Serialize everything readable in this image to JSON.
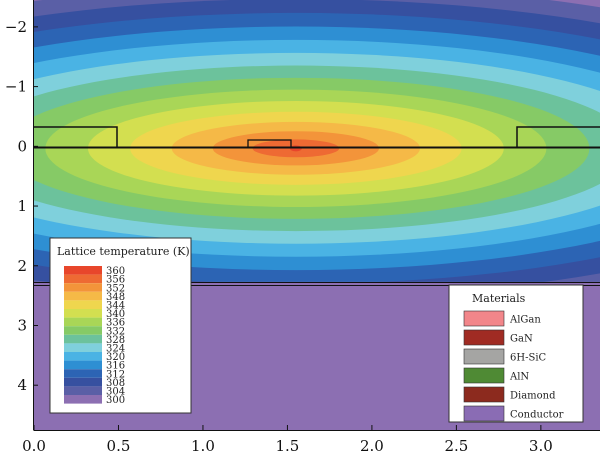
{
  "chart_data": {
    "type": "heatmap",
    "title": "",
    "xlabel": "",
    "ylabel": "",
    "x_ticks": [
      "0.0",
      "0.5",
      "1.0",
      "1.5",
      "2.0",
      "2.5",
      "3.0"
    ],
    "y_ticks": [
      "−2",
      "−1",
      "0",
      "1",
      "2",
      "3",
      "4"
    ],
    "xlim": [
      0.0,
      3.35
    ],
    "ylim": [
      -2.45,
      4.75
    ],
    "y_inverted": true,
    "hotspot": {
      "x": 1.55,
      "y": 0.0,
      "peak_temperature_K": 360
    },
    "colorbar": {
      "title": "Lattice temperature (K)",
      "levels": [
        "360",
        "356",
        "352",
        "348",
        "344",
        "340",
        "336",
        "332",
        "328",
        "324",
        "320",
        "316",
        "312",
        "308",
        "304",
        "300"
      ],
      "colors": [
        "#e8462b",
        "#ee6a33",
        "#f3943a",
        "#f5b947",
        "#efd64e",
        "#d3df50",
        "#a9d657",
        "#86ca66",
        "#6cc29c",
        "#7fd0dc",
        "#4ab3e4",
        "#2e8fd3",
        "#2c64b4",
        "#3650a0",
        "#5a5fa6",
        "#8c6fb2"
      ]
    },
    "materials_legend": {
      "title": "Materials",
      "items": [
        {
          "label": "AlGan",
          "color": "#f2868a"
        },
        {
          "label": "GaN",
          "color": "#a02b23"
        },
        {
          "label": "6H-SiC",
          "color": "#a5a5a3"
        },
        {
          "label": "AlN",
          "color": "#4f8a34"
        },
        {
          "label": "Diamond",
          "color": "#8c2a1e"
        },
        {
          "label": "Conductor",
          "color": "#8a6cb4"
        }
      ]
    },
    "conductor_region_y_start": 2.27,
    "conductor_color": "#8c6fb2"
  }
}
